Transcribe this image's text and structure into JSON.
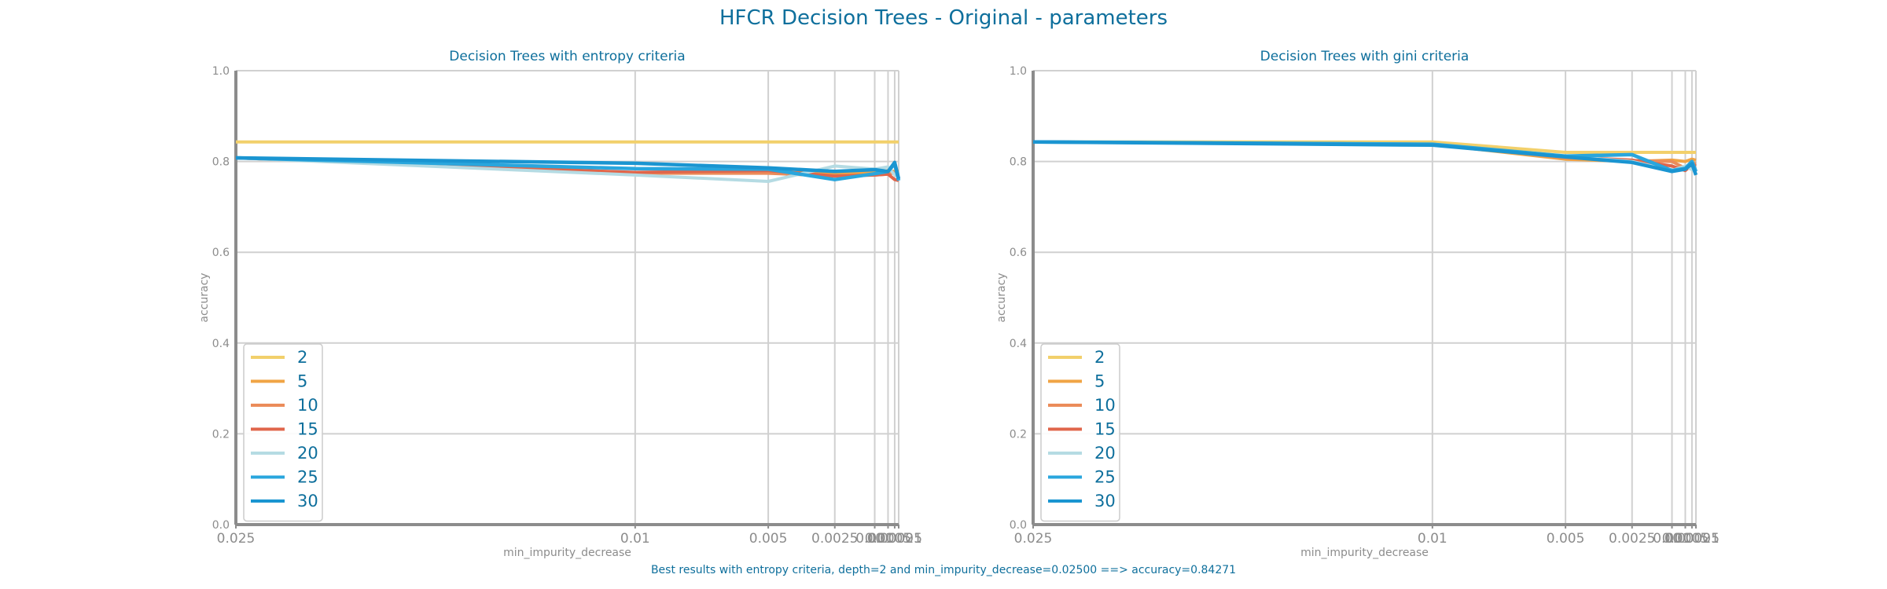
{
  "title": "HFCR Decision Trees - Original - parameters",
  "footer": "Best results with entropy criteria, depth=2 and min_impurity_decrease=0.02500 ==> accuracy=0.84271",
  "colors": {
    "title": "#0e6f9c",
    "axis": "#8c8c8c",
    "grid": "#d0d0d0",
    "series": [
      "#f2d06b",
      "#f0a445",
      "#eb8c5a",
      "#e0664b",
      "#b5dbe3",
      "#29a6dd",
      "#1a95d1"
    ]
  },
  "chart_data": [
    {
      "type": "line",
      "title": "Decision Trees with entropy criteria",
      "xlabel": "min_impurity_decrease",
      "ylabel": "accuracy",
      "x": [
        0.025,
        0.01,
        0.005,
        0.0025,
        0.001,
        0.0005,
        0.00025,
        0.0001
      ],
      "x_tick_labels": [
        "0.025",
        "0.01",
        "0.005",
        "0.0025",
        "0.001",
        "0.0005",
        "0.00025",
        "0.0001"
      ],
      "x_reversed": true,
      "ylim": [
        0,
        1
      ],
      "y_ticks": [
        "0.0",
        "0.2",
        "0.4",
        "0.6",
        "0.8",
        "1.0"
      ],
      "grid": true,
      "legend_position": "lower-left",
      "series": [
        {
          "name": "2",
          "values": [
            0.843,
            0.843,
            0.843,
            0.843,
            0.843,
            0.843,
            0.843,
            0.843
          ]
        },
        {
          "name": "5",
          "values": [
            0.808,
            0.775,
            0.776,
            0.775,
            0.776,
            0.78,
            0.778,
            0.778
          ]
        },
        {
          "name": "10",
          "values": [
            0.808,
            0.774,
            0.774,
            0.768,
            0.77,
            0.772,
            0.775,
            0.77
          ]
        },
        {
          "name": "15",
          "values": [
            0.808,
            0.776,
            0.78,
            0.768,
            0.77,
            0.772,
            0.76,
            0.758
          ]
        },
        {
          "name": "20",
          "values": [
            0.808,
            0.77,
            0.756,
            0.79,
            0.783,
            0.788,
            0.77,
            0.772
          ]
        },
        {
          "name": "25",
          "values": [
            0.808,
            0.784,
            0.783,
            0.76,
            0.773,
            0.778,
            0.795,
            0.758
          ]
        },
        {
          "name": "30",
          "values": [
            0.808,
            0.796,
            0.786,
            0.778,
            0.782,
            0.778,
            0.798,
            0.762
          ]
        }
      ]
    },
    {
      "type": "line",
      "title": "Decision Trees with gini criteria",
      "xlabel": "min_impurity_decrease",
      "ylabel": "accuracy",
      "x": [
        0.025,
        0.01,
        0.005,
        0.0025,
        0.001,
        0.0005,
        0.00025,
        0.0001
      ],
      "x_tick_labels": [
        "0.025",
        "0.01",
        "0.005",
        "0.0025",
        "0.001",
        "0.0005",
        "0.00025",
        "0.0001"
      ],
      "x_reversed": true,
      "ylim": [
        0,
        1
      ],
      "y_ticks": [
        "0.0",
        "0.2",
        "0.4",
        "0.6",
        "0.8",
        "1.0"
      ],
      "grid": true,
      "legend_position": "lower-left",
      "series": [
        {
          "name": "2",
          "values": [
            0.843,
            0.843,
            0.82,
            0.82,
            0.82,
            0.82,
            0.82,
            0.82
          ]
        },
        {
          "name": "5",
          "values": [
            0.843,
            0.838,
            0.805,
            0.8,
            0.803,
            0.8,
            0.805,
            0.803
          ]
        },
        {
          "name": "10",
          "values": [
            0.843,
            0.838,
            0.808,
            0.802,
            0.8,
            0.785,
            0.796,
            0.795
          ]
        },
        {
          "name": "15",
          "values": [
            0.843,
            0.838,
            0.81,
            0.803,
            0.79,
            0.78,
            0.793,
            0.79
          ]
        },
        {
          "name": "20",
          "values": [
            0.843,
            0.838,
            0.812,
            0.8,
            0.78,
            0.79,
            0.782,
            0.785
          ]
        },
        {
          "name": "25",
          "values": [
            0.843,
            0.838,
            0.812,
            0.815,
            0.78,
            0.785,
            0.8,
            0.778
          ]
        },
        {
          "name": "30",
          "values": [
            0.843,
            0.836,
            0.81,
            0.798,
            0.778,
            0.783,
            0.795,
            0.77
          ]
        }
      ]
    }
  ]
}
